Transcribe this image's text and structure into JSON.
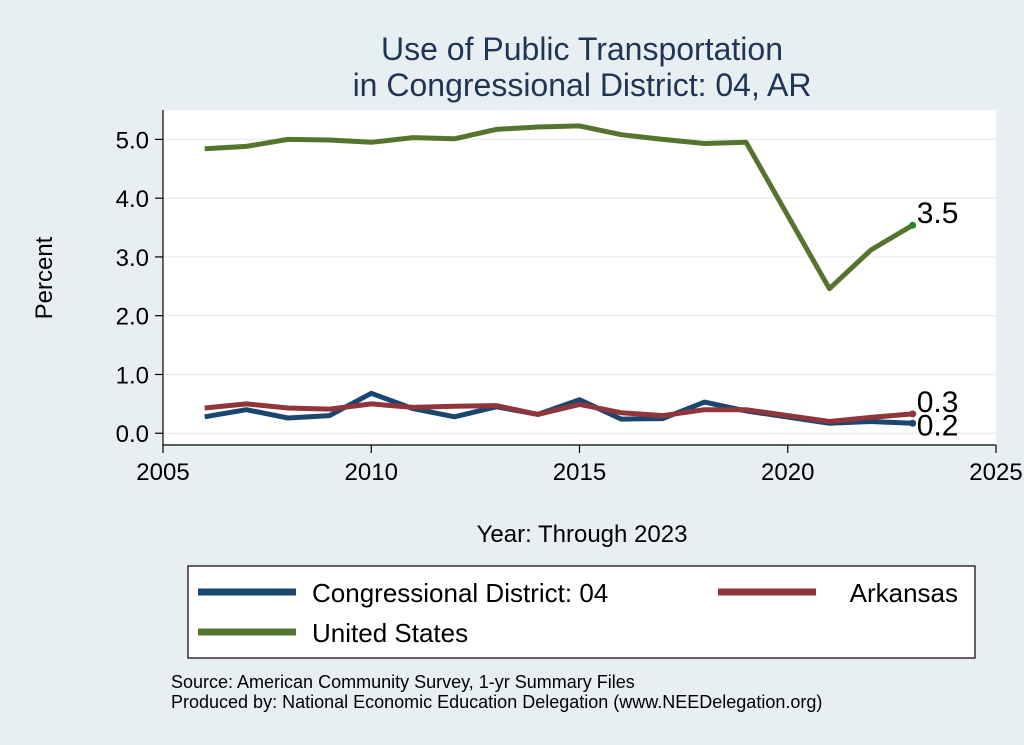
{
  "chart_data": {
    "type": "line",
    "title": [
      "Use of Public Transportation",
      "in Congressional District: 04, AR"
    ],
    "xlabel": "Year: Through 2023",
    "ylabel": "Percent",
    "xlim": [
      2005,
      2025
    ],
    "ylim": [
      -0.2,
      5.5
    ],
    "xticks": [
      2005,
      2010,
      2015,
      2020,
      2025
    ],
    "yticks": [
      0,
      1,
      2,
      3,
      4,
      5
    ],
    "ytick_labels": [
      "0.0",
      "1.0",
      "2.0",
      "3.0",
      "4.0",
      "5.0"
    ],
    "x": [
      2006,
      2007,
      2008,
      2009,
      2010,
      2011,
      2012,
      2013,
      2014,
      2015,
      2016,
      2017,
      2018,
      2019,
      2021,
      2022,
      2023
    ],
    "series": [
      {
        "name": "Congressional District: 04",
        "color": "#1a476f",
        "values": [
          0.28,
          0.4,
          0.26,
          0.3,
          0.68,
          0.42,
          0.28,
          0.45,
          0.32,
          0.57,
          0.24,
          0.25,
          0.53,
          0.38,
          0.17,
          0.2,
          0.17
        ],
        "end_label": "0.2"
      },
      {
        "name": "Arkansas",
        "color": "#90353b",
        "values": [
          0.43,
          0.5,
          0.43,
          0.41,
          0.5,
          0.44,
          0.46,
          0.47,
          0.32,
          0.49,
          0.35,
          0.3,
          0.4,
          0.4,
          0.2,
          0.27,
          0.33
        ],
        "end_label": "0.3"
      },
      {
        "name": "United States",
        "color": "#55752f",
        "values": [
          4.84,
          4.88,
          5.0,
          4.99,
          4.95,
          5.03,
          5.01,
          5.17,
          5.21,
          5.23,
          5.08,
          5.0,
          4.93,
          4.95,
          2.46,
          3.12,
          3.54
        ],
        "end_label": "3.5"
      }
    ],
    "legend": {
      "placement": "bottom",
      "entries": [
        "Congressional District: 04",
        "Arkansas",
        "United States"
      ]
    },
    "source_lines": [
      "Source: American Community Survey, 1-yr Summary Files",
      "Produced by: National Economic Education Delegation (www.NEEDelegation.org)"
    ]
  }
}
